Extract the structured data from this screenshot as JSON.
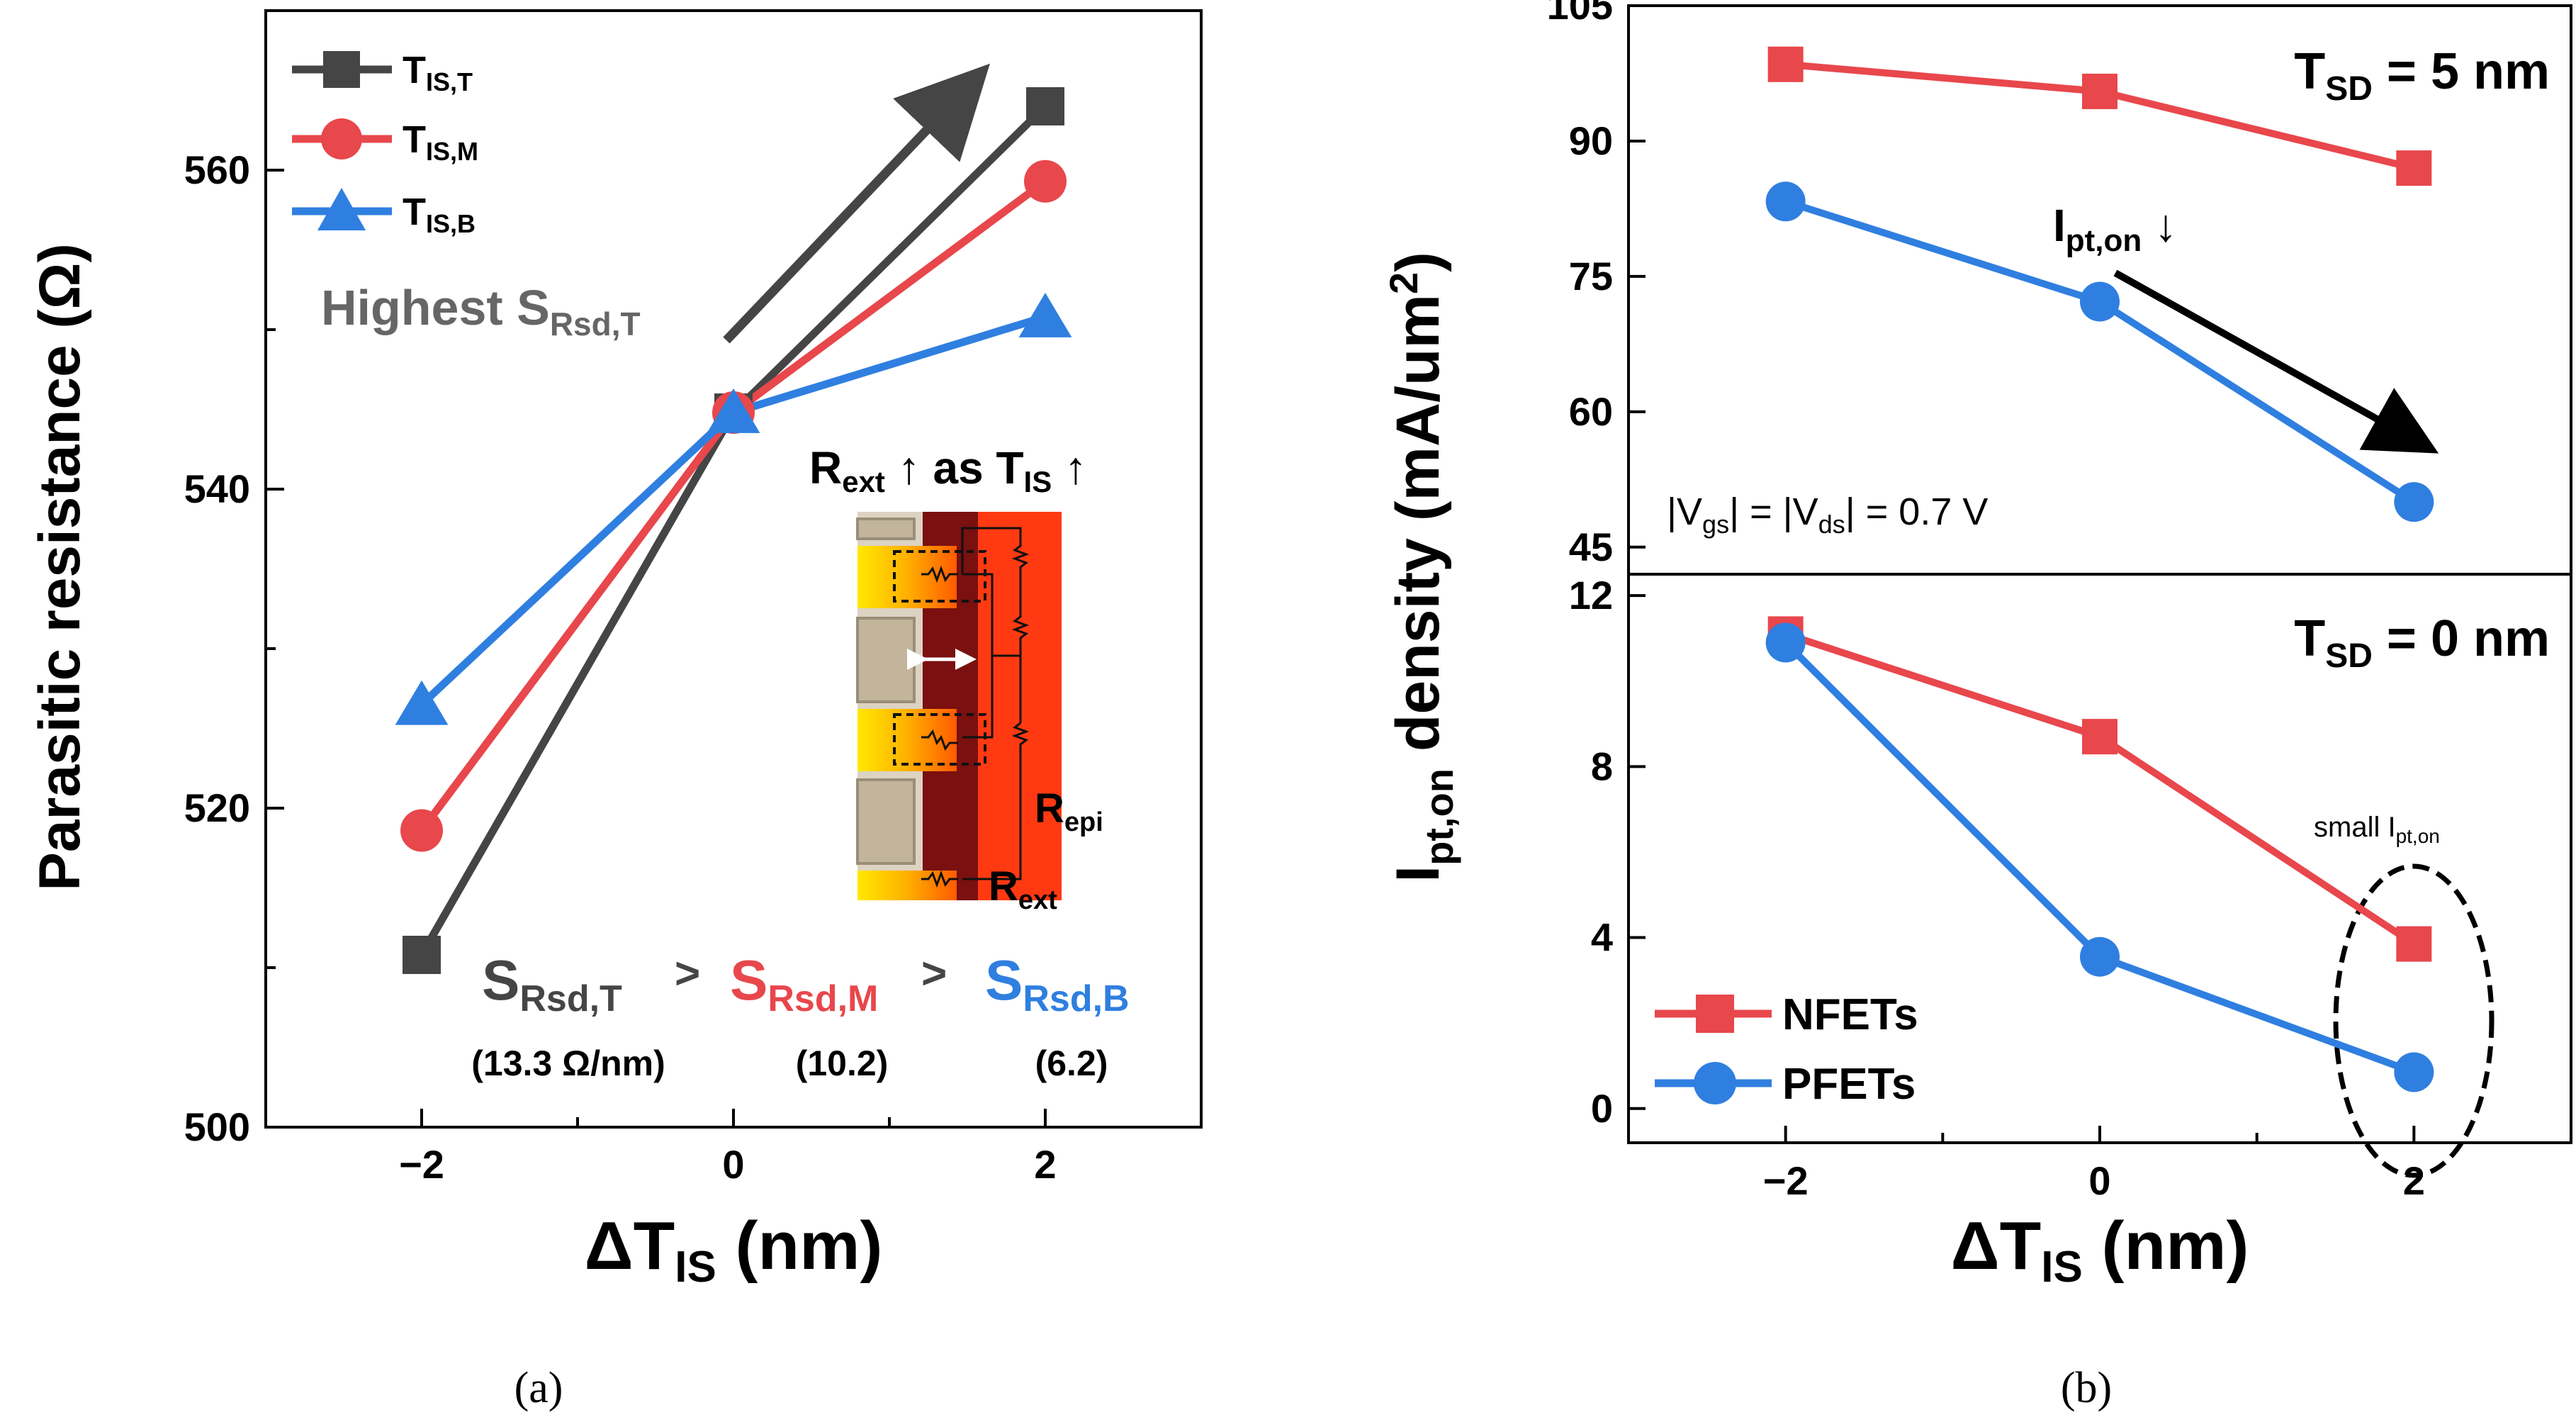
{
  "chart_data": [
    {
      "type": "line",
      "panel": "a",
      "ylabel": "Parasitic resistance (Ω)",
      "xlabel": {
        "main": "ΔT",
        "sub": "IS",
        "unit": " (nm)"
      },
      "xlim": [
        -3,
        3
      ],
      "ylim": [
        500,
        570
      ],
      "x_ticks": [
        -2,
        0,
        2
      ],
      "x_tick_labels": [
        "−2",
        "0",
        "2"
      ],
      "y_ticks": [
        500,
        520,
        540,
        560
      ],
      "x": [
        -2,
        0,
        2
      ],
      "series": [
        {
          "name": "T_IS,T",
          "label_main": "T",
          "label_sub": "IS,T",
          "color": "#454545",
          "marker": "square",
          "values": [
            510.8,
            544.8,
            564.0
          ]
        },
        {
          "name": "T_IS,M",
          "label_main": "T",
          "label_sub": "IS,M",
          "color": "#e8474c",
          "marker": "circle",
          "values": [
            518.6,
            544.8,
            559.3
          ]
        },
        {
          "name": "T_IS,B",
          "label_main": "T",
          "label_sub": "IS,B",
          "color": "#2f7fe0",
          "marker": "triangle",
          "values": [
            526.5,
            544.8,
            550.8
          ]
        }
      ],
      "legend_position": "top-left",
      "annotations": {
        "highest": {
          "main": "Highest S",
          "sub": "Rsd,T"
        },
        "slopes": [
          {
            "main": "S",
            "sub": "Rsd,T",
            "value": "(13.3 Ω/nm)",
            "color": "#454545"
          },
          {
            "main": "S",
            "sub": "Rsd,M",
            "value": "(10.2)",
            "color": "#e8474c"
          },
          {
            "main": "S",
            "sub": "Rsd,B",
            "value": "(6.2)",
            "color": "#2f7fe0"
          }
        ],
        "gt": ">",
        "inset_title": {
          "r": "R",
          "r_sub": "ext",
          "up1": " ↑ as T",
          "t_sub": "IS",
          "up2": " ↑"
        },
        "inset_repi": {
          "main": "R",
          "sub": "epi"
        },
        "inset_rext": {
          "main": "R",
          "sub": "ext"
        }
      },
      "caption": "(a)"
    },
    {
      "type": "line",
      "panel": "b",
      "ylabel": {
        "main": "I",
        "sub": "pt,on",
        "rest": " density (mA/um",
        "sup": "2",
        "close": ")"
      },
      "xlabel": {
        "main": "ΔT",
        "sub": "IS",
        "unit": " (nm)"
      },
      "xlim": [
        -3,
        3
      ],
      "x_ticks": [
        -2,
        0,
        2
      ],
      "x_tick_labels": [
        "−2",
        "0",
        "2"
      ],
      "x": [
        -2,
        0,
        2
      ],
      "subplots": [
        {
          "id": "top",
          "title": {
            "main": "T",
            "sub": "SD",
            "rest": " = 5 nm"
          },
          "ylim": [
            42,
            105
          ],
          "y_ticks": [
            45,
            60,
            75,
            90,
            105
          ],
          "series": [
            {
              "name": "NFETs",
              "color": "#e8474c",
              "marker": "square",
              "values": [
                98.5,
                95.5,
                87.0
              ]
            },
            {
              "name": "PFETs",
              "color": "#2f7fe0",
              "marker": "circle",
              "values": [
                83.3,
                72.2,
                50.0
              ]
            }
          ],
          "annotations": {
            "ipt": {
              "main": "I",
              "sub": "pt,on",
              "arrow": " ↓"
            },
            "vgs": {
              "p1": "|V",
              "s1": "gs",
              "p2": "| = |V",
              "s2": "ds",
              "p3": "| = 0.7 V"
            }
          }
        },
        {
          "id": "bottom",
          "title": {
            "main": "T",
            "sub": "SD",
            "rest": " = 0 nm"
          },
          "ylim": [
            -0.8,
            12.5
          ],
          "y_ticks": [
            0,
            4,
            8,
            12
          ],
          "series": [
            {
              "name": "NFETs",
              "color": "#e8474c",
              "marker": "square",
              "values": [
                11.1,
                8.7,
                3.85
              ]
            },
            {
              "name": "PFETs",
              "color": "#2f7fe0",
              "marker": "circle",
              "values": [
                10.9,
                3.55,
                0.85
              ]
            }
          ],
          "annotations": {
            "small": {
              "main": "small I",
              "sub": "pt,on"
            }
          }
        }
      ],
      "legend_position": "bottom-left",
      "legend": [
        "NFETs",
        "PFETs"
      ],
      "caption": "(b)"
    }
  ]
}
